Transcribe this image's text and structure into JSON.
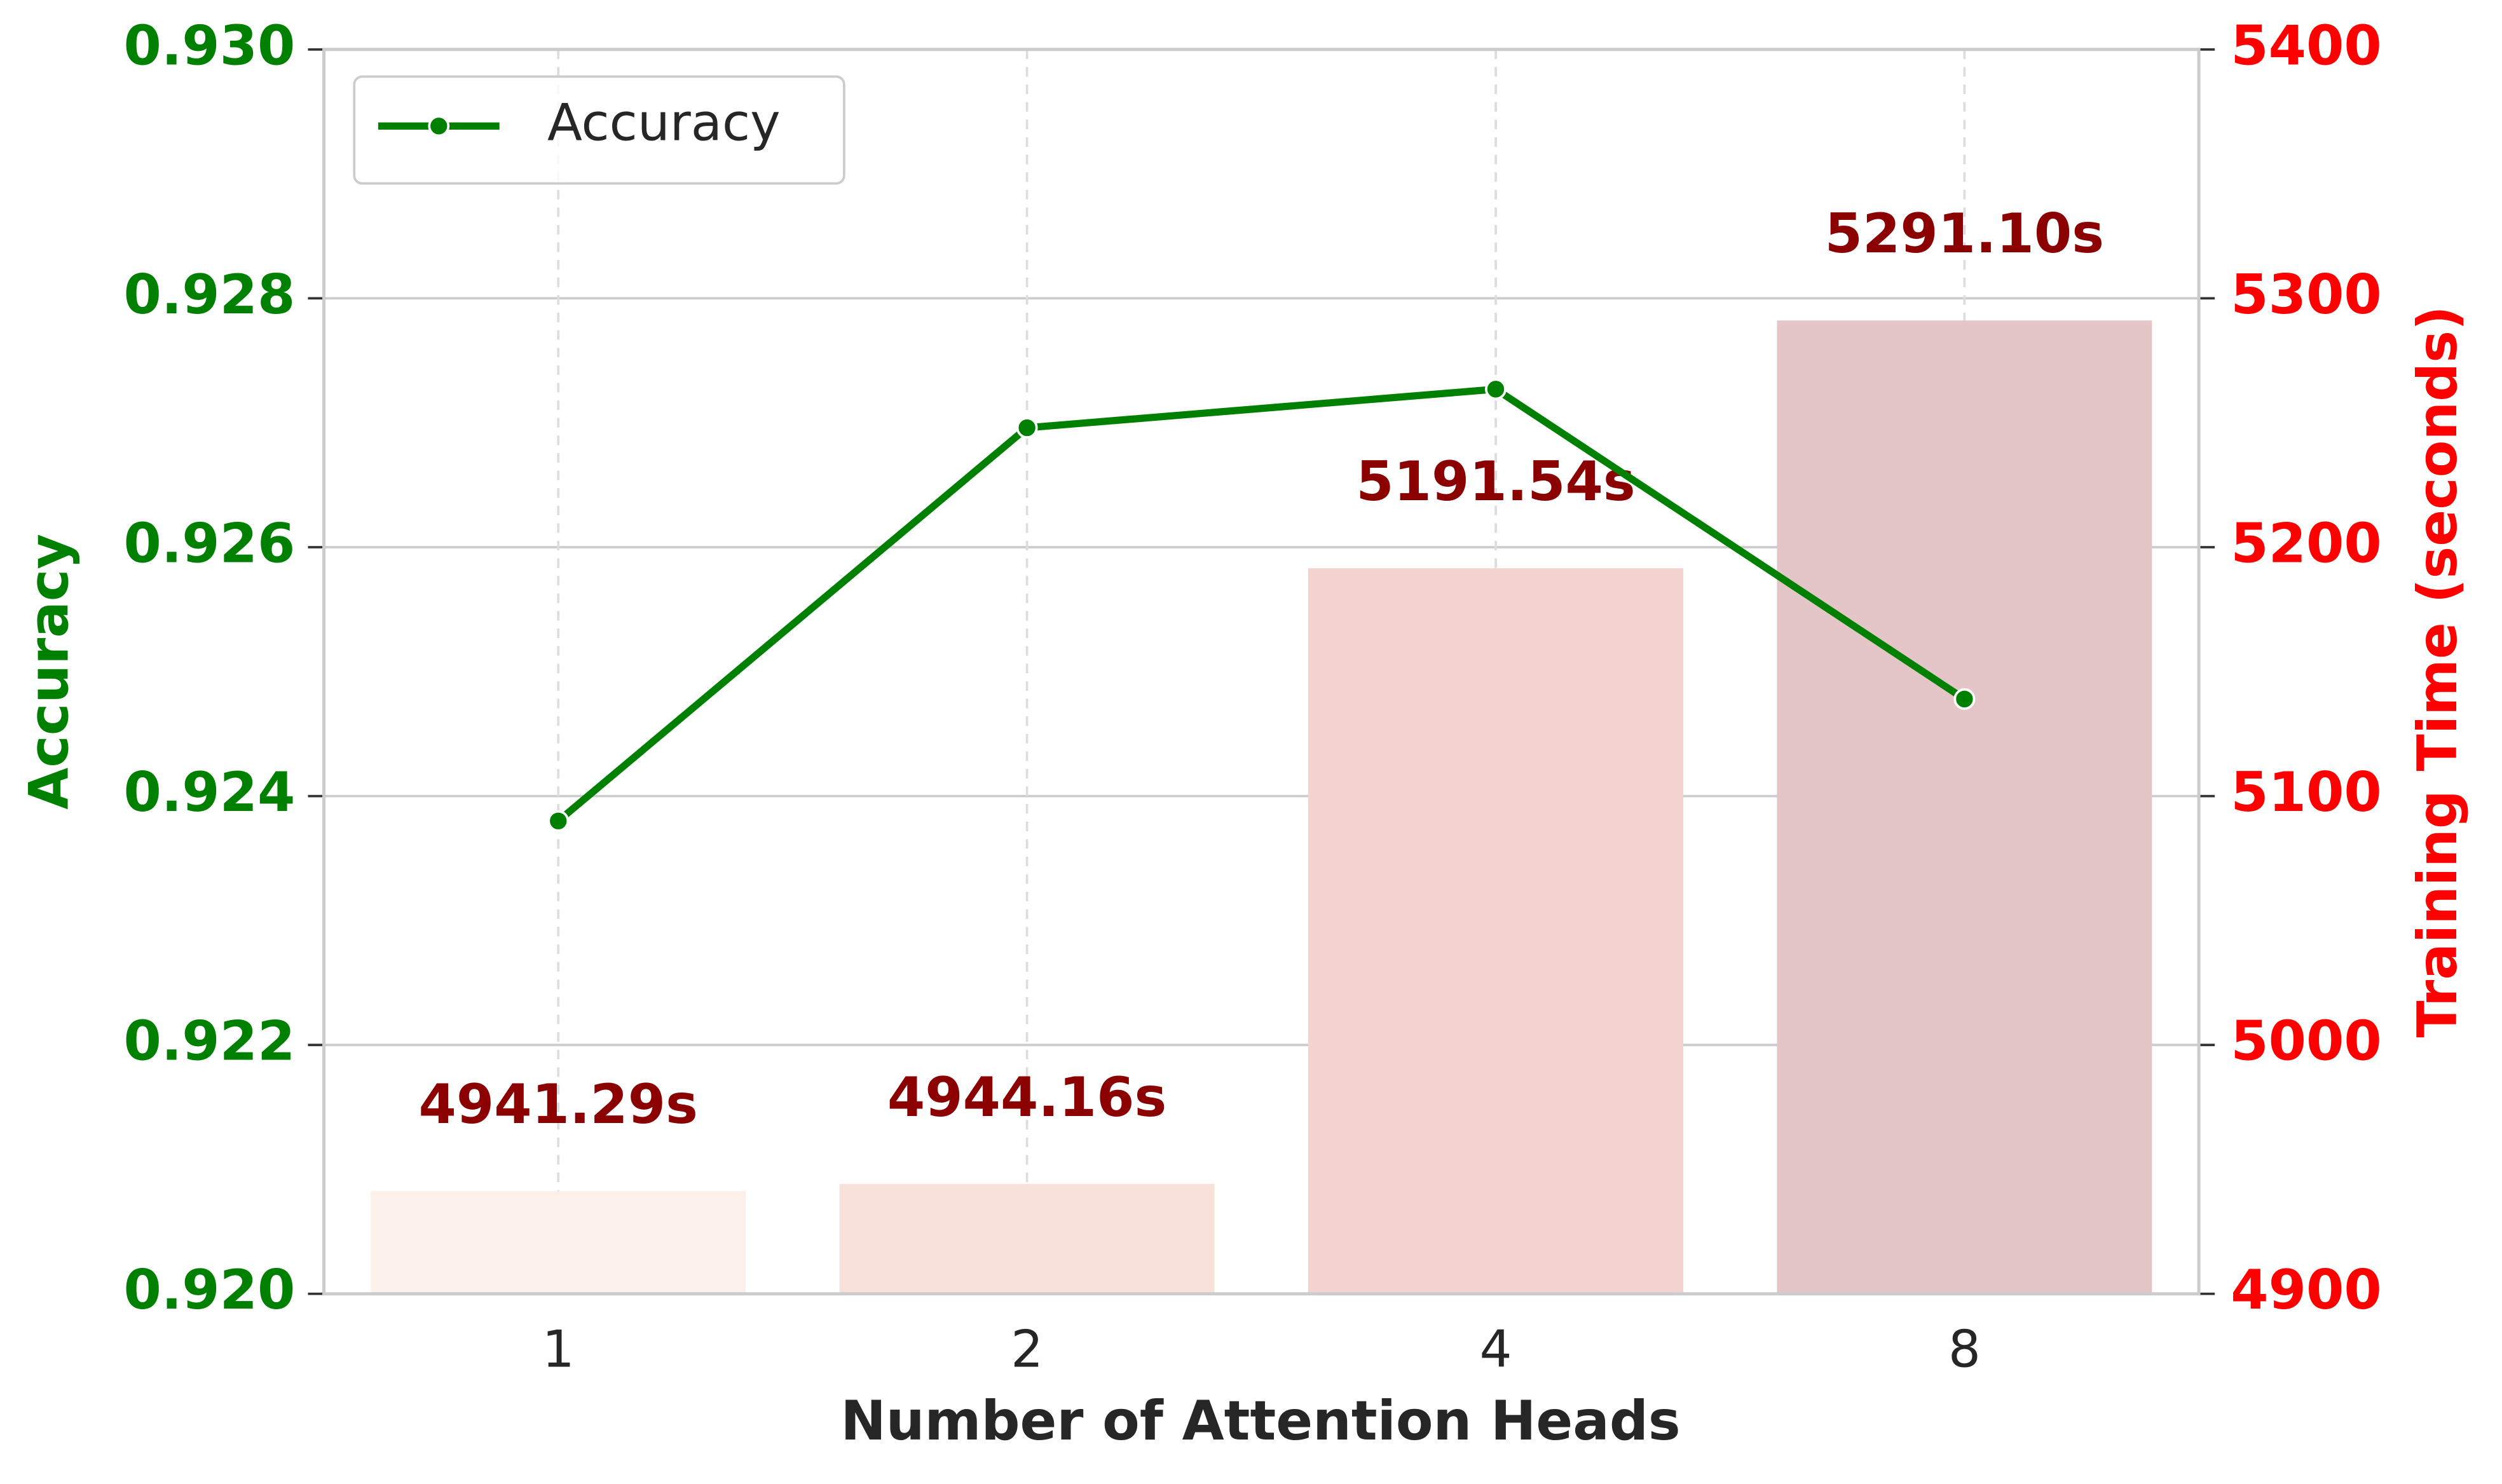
{
  "chart_data": {
    "type": "bar-line",
    "x_label": "Number of Attention Heads",
    "y_label": "Accuracy",
    "y2_label": "Training Time (seconds)",
    "categories": [
      "1",
      "2",
      "4",
      "8"
    ],
    "series": [
      {
        "type": "bar",
        "axis": "y2",
        "colors": [
          "#fcf0eb",
          "#f8e1d9",
          "#f2d3cf",
          "#e4c6c8"
        ],
        "values": [
          4941.29,
          4944.16,
          5191.54,
          5291.1
        ],
        "value_labels": [
          "4941.29s",
          "4944.16s",
          "5191.54s",
          "5291.10s"
        ],
        "label_color": "#8b0000"
      },
      {
        "type": "line",
        "name": "Accuracy",
        "color": "#008000",
        "values": [
          0.9238,
          0.92696,
          0.92727,
          0.92478
        ]
      }
    ],
    "ylim": [
      0.92,
      0.93
    ],
    "yticks": [
      {
        "value": 0.92,
        "label": "0.920"
      },
      0.922,
      0.924,
      0.926,
      0.928,
      {
        "value": 0.93,
        "label": "0.930"
      }
    ],
    "y2lim": [
      4900,
      5400
    ],
    "y2ticks": [
      4900,
      5000,
      5100,
      5200,
      5300,
      5400
    ],
    "y_color": "#008000",
    "y2_color": "#ff0000",
    "grid": true,
    "legend": "upper left"
  }
}
